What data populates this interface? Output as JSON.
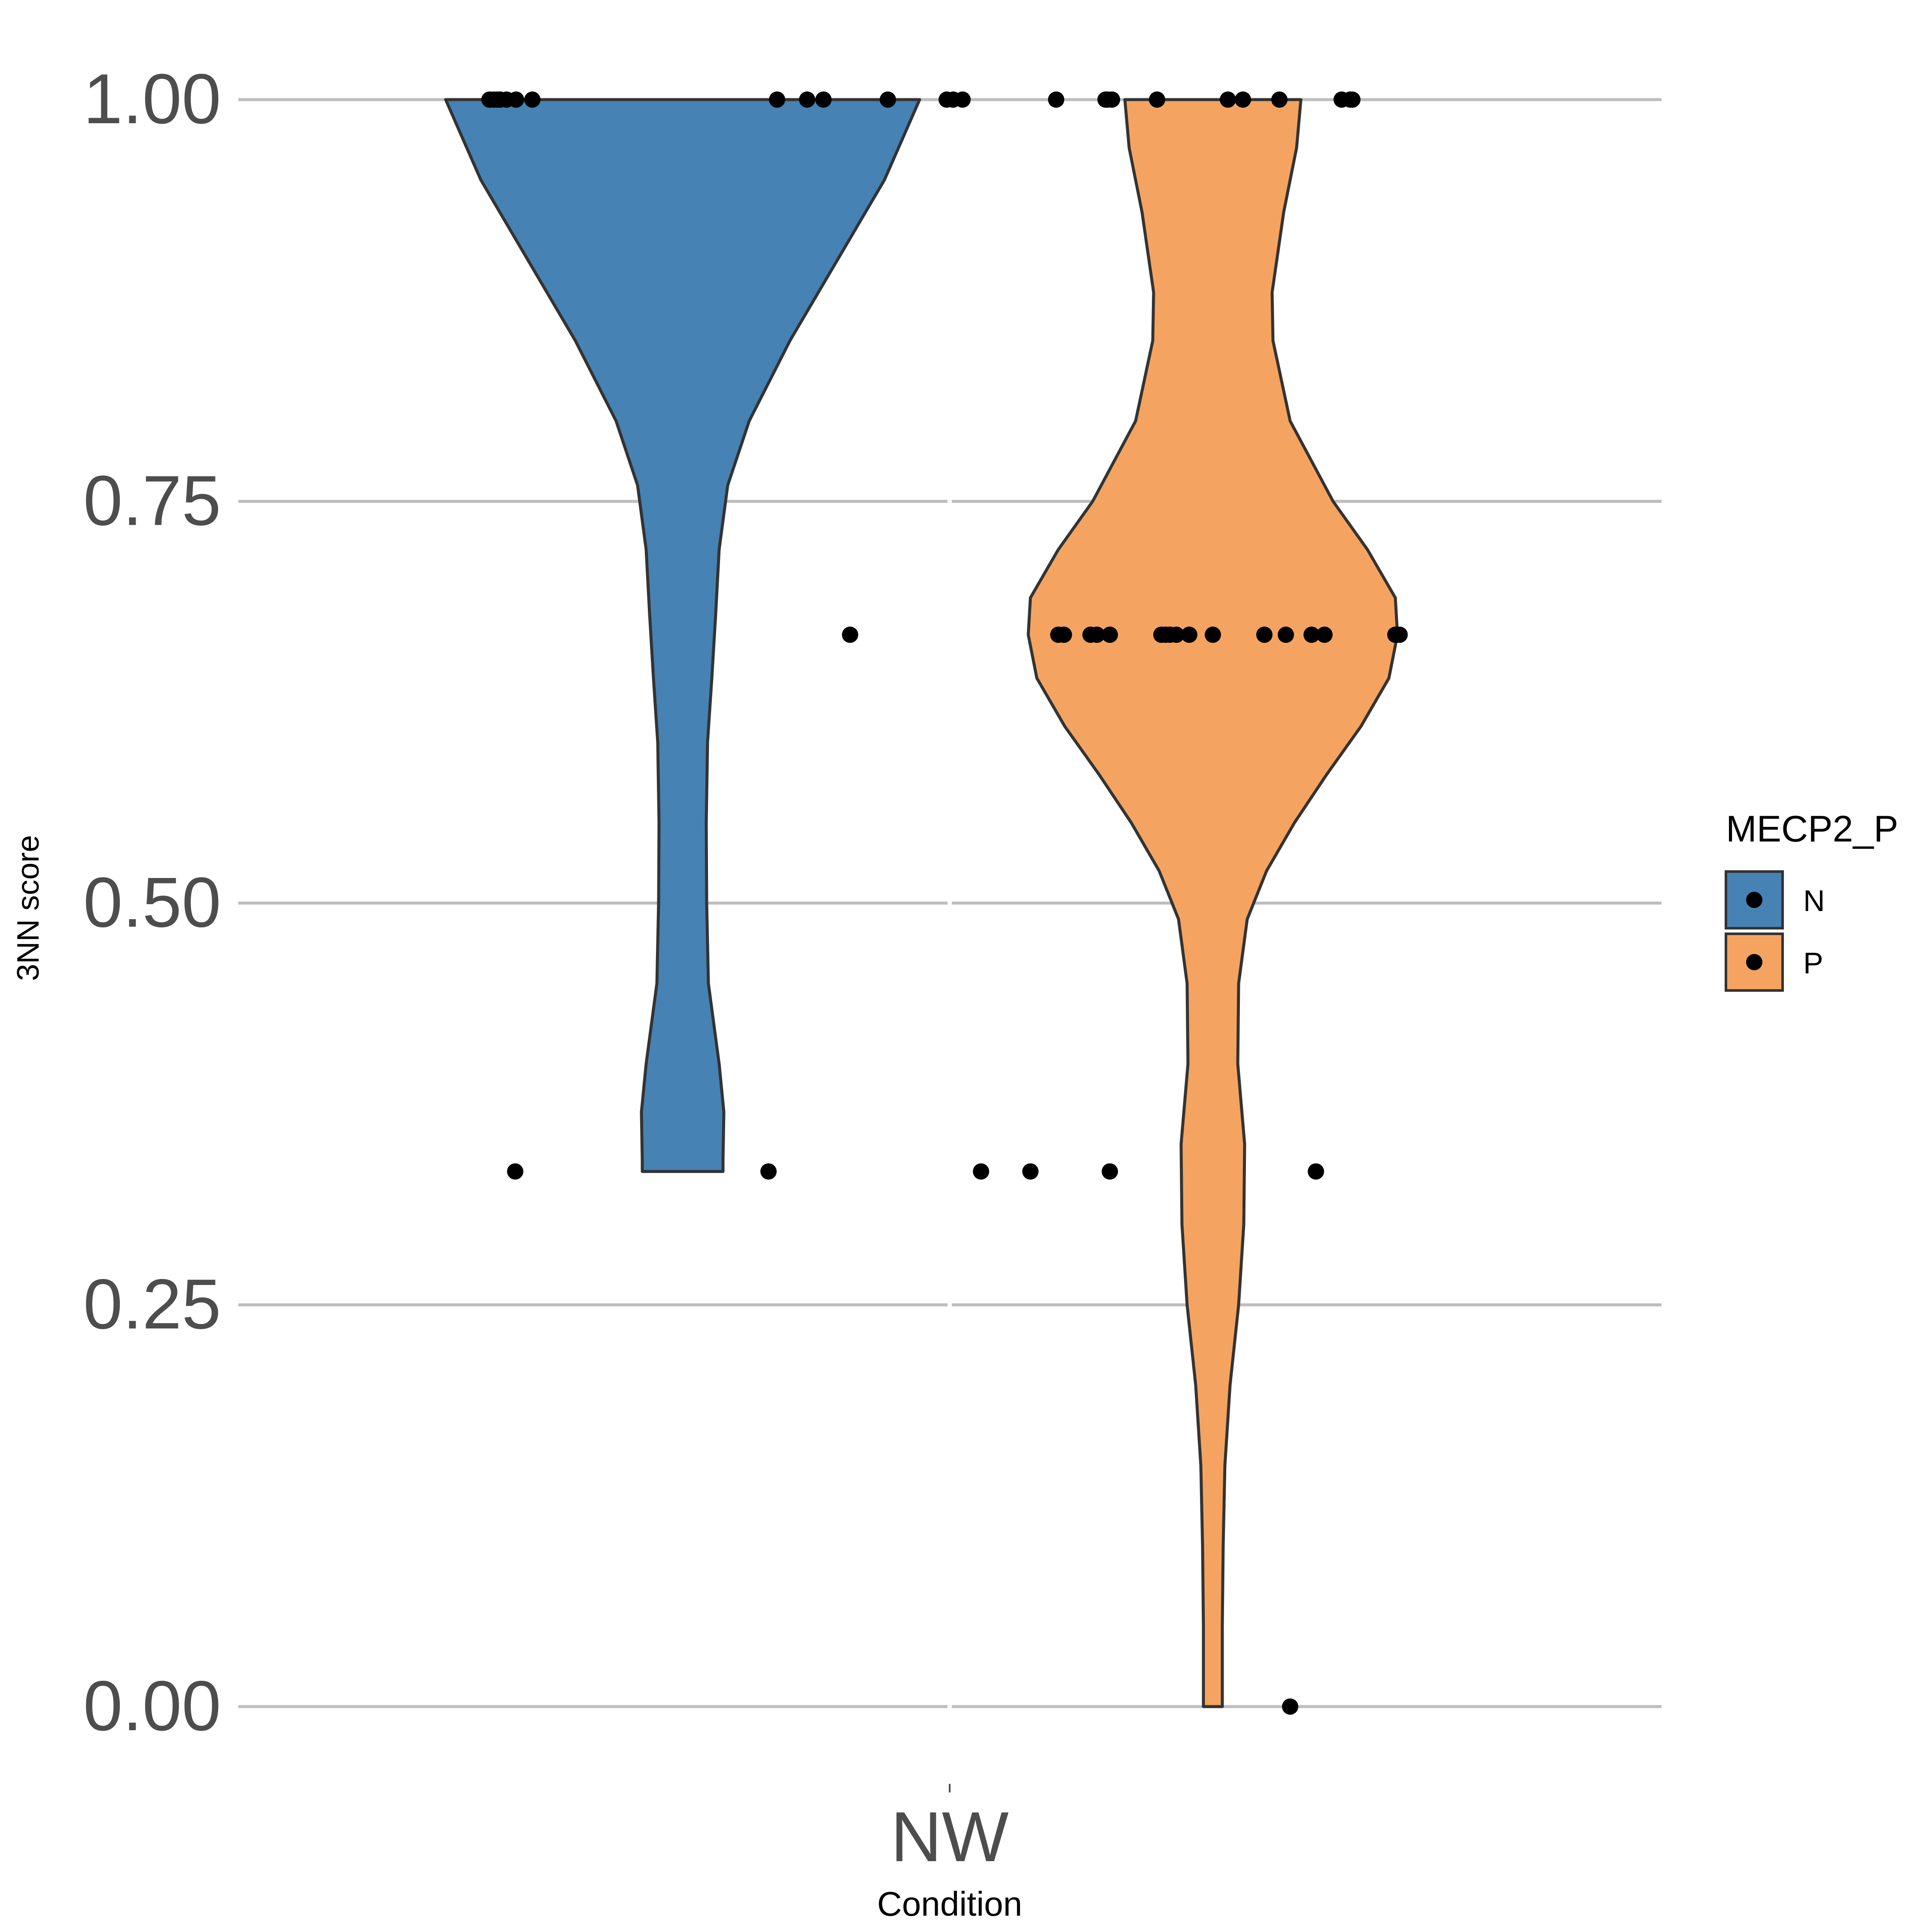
{
  "chart_data": {
    "type": "violin",
    "xlabel": "Condition",
    "ylabel": "3NN score",
    "categories": [
      "NW"
    ],
    "ylim": [
      0,
      1
    ],
    "yticks": [
      "0.00",
      "0.25",
      "0.50",
      "0.75",
      "1.00"
    ],
    "grid": true,
    "legend": {
      "title": "MECP2_P",
      "placement": "right",
      "entries": [
        {
          "label": "N",
          "color": "#4682b4"
        },
        {
          "label": "P",
          "color": "#f4a460"
        }
      ]
    },
    "series": [
      {
        "name": "N",
        "color": "#4682b4",
        "violin_range": [
          0.333,
          1.0
        ],
        "points": [
          1,
          1,
          1,
          1,
          1,
          1,
          1,
          1,
          1,
          1,
          1,
          1,
          1,
          1,
          0.667,
          0.333,
          0.333
        ]
      },
      {
        "name": "P",
        "color": "#f4a460",
        "violin_range": [
          0.0,
          1.0
        ],
        "points": [
          1,
          1,
          1,
          1,
          1,
          1,
          1,
          1,
          1,
          1,
          1,
          0.667,
          0.667,
          0.667,
          0.667,
          0.667,
          0.667,
          0.667,
          0.667,
          0.667,
          0.667,
          0.667,
          0.667,
          0.667,
          0.667,
          0.667,
          0.667,
          0.667,
          0.333,
          0.333,
          0.333,
          0.333,
          0
        ]
      }
    ]
  }
}
